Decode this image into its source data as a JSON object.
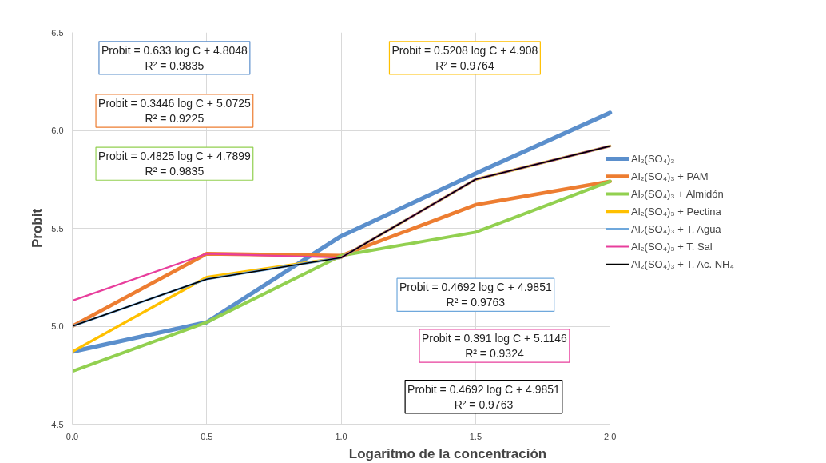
{
  "chart_data": {
    "type": "line",
    "xlabel": "Logaritmo de la concentración",
    "ylabel": "Probit",
    "x": [
      0,
      0.5,
      1.0,
      1.5,
      2.0
    ],
    "series": [
      {
        "name": "Al₂(SO₄)₃",
        "color": "#5b8fcc",
        "values": [
          4.87,
          5.02,
          5.46,
          5.78,
          6.09
        ]
      },
      {
        "name": "Al₂(SO₄)₃ + PAM",
        "color": "#ed7d31",
        "values": [
          5.0,
          5.37,
          5.36,
          5.62,
          5.74
        ]
      },
      {
        "name": "Al₂(SO₄)₃ + Almidón",
        "color": "#92d050",
        "values": [
          4.77,
          5.02,
          5.36,
          5.48,
          5.74
        ]
      },
      {
        "name": "Al₂(SO₄)₃ + Pectina",
        "color": "#ffc000",
        "values": [
          4.87,
          5.25,
          5.35,
          5.75,
          5.92
        ]
      },
      {
        "name": "Al₂(SO₄)₃ + T. Agua",
        "color": "#6fa8dc",
        "values": [
          5.0,
          5.24,
          5.35,
          5.75,
          5.92
        ]
      },
      {
        "name": "Al₂(SO₄)₃ + T. Sal",
        "color": "#e83e9c",
        "values": [
          5.13,
          5.37,
          5.35,
          5.75,
          5.92
        ]
      },
      {
        "name": "Al₂(SO₄)₃ + T. Ac. NH₄",
        "color": "#000000",
        "values": [
          5.0,
          5.24,
          5.35,
          5.75,
          5.92
        ]
      }
    ],
    "annotations": [
      "Probit = 0.633 log C + 4.8048\nR² = 0.9835",
      "Probit = 0.3446 log C + 5.0725\nR² = 0.9225",
      "Probit = 0.4825 log C + 4.7899\nR² = 0.9835",
      "Probit = 0.5208 log C + 4.908\nR² = 0.9764",
      "Probit = 0.4692 log C + 4.9851\nR² = 0.9763",
      "Probit = 0.391 log C + 5.1146\nR² = 0.9324",
      "Probit = 0.4692 log C + 4.9851\nR² = 0.9763"
    ],
    "xlim": [
      0,
      2.0
    ],
    "ylim": [
      4.5,
      6.5
    ],
    "xticks": [
      {
        "value": 0,
        "label": "0.0"
      },
      {
        "value": 0.5,
        "label": "0.5"
      },
      {
        "value": 1.0,
        "label": "1.0"
      },
      {
        "value": 1.5,
        "label": "1.5"
      },
      {
        "value": 2.0,
        "label": "2.0"
      }
    ],
    "yticks": [
      {
        "value": 4.5,
        "label": "4.5"
      },
      {
        "value": 5.0,
        "label": "5.0"
      },
      {
        "value": 5.5,
        "label": "5.5"
      },
      {
        "value": 6.0,
        "label": "6.0"
      },
      {
        "value": 6.5,
        "label": "6.5"
      }
    ],
    "grid": true,
    "legend": "right",
    "marker": "none",
    "line_style": "solid"
  }
}
